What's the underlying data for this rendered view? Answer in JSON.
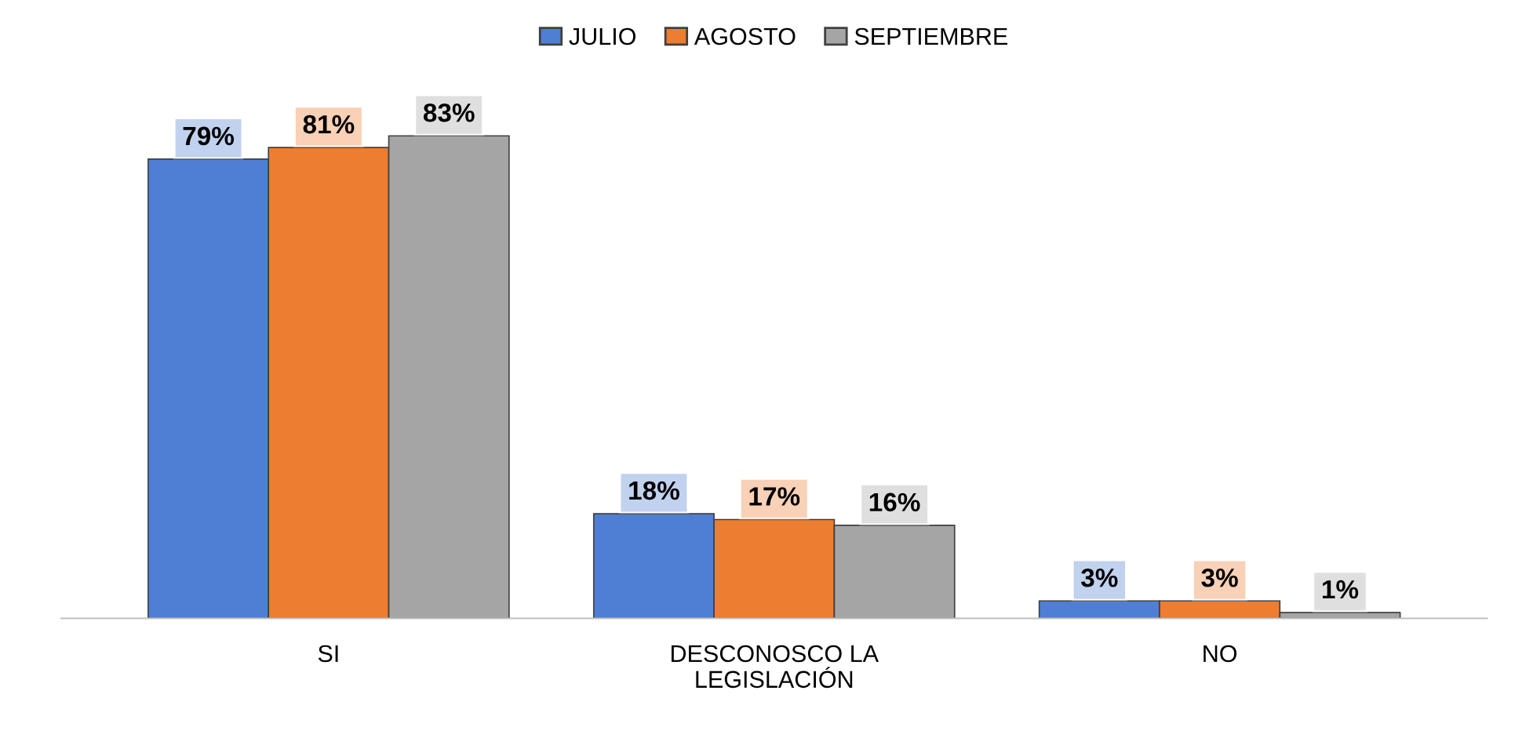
{
  "chart_data": {
    "type": "bar",
    "categories": [
      "SI",
      "DESCONOSCO LA\nLEGISLACIÓN",
      "NO"
    ],
    "series": [
      {
        "name": "JULIO",
        "color": "#4f7fd4",
        "values": [
          79,
          18,
          3
        ],
        "value_labels": [
          "79%",
          "18%",
          "3%"
        ]
      },
      {
        "name": "AGOSTO",
        "color": "#ed7d31",
        "values": [
          81,
          17,
          3
        ],
        "value_labels": [
          "81%",
          "17%",
          "3%"
        ]
      },
      {
        "name": "SEPTIEMBRE",
        "color": "#a5a5a5",
        "values": [
          83,
          16,
          1
        ],
        "value_labels": [
          "83%",
          "16%",
          "1%"
        ]
      }
    ],
    "legend": "top"
  }
}
